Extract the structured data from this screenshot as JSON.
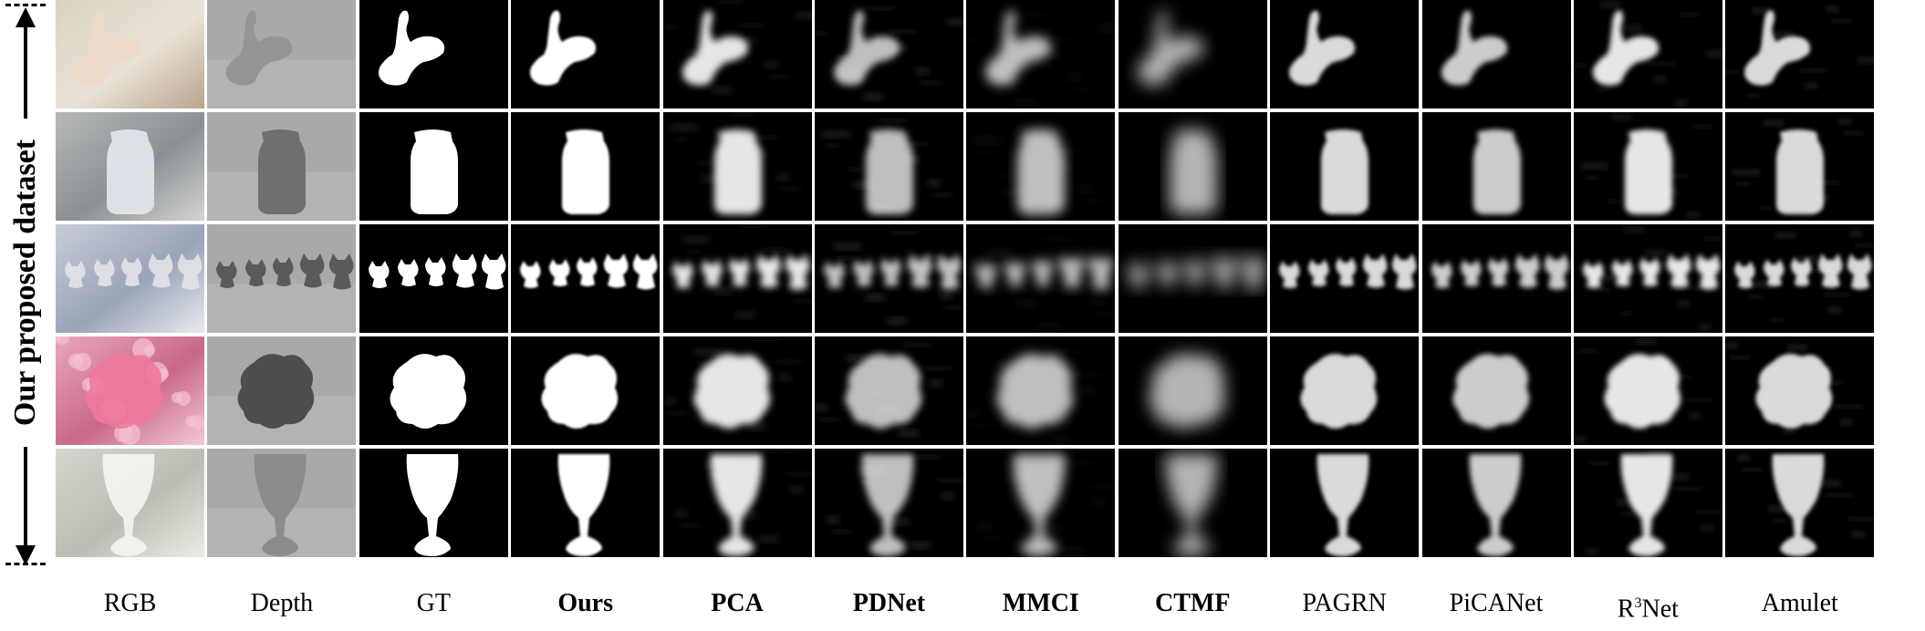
{
  "side_label": "Our proposed dataset",
  "columns": [
    {
      "label": "RGB",
      "bold": false
    },
    {
      "label": "Depth",
      "bold": false
    },
    {
      "label": "GT",
      "bold": false
    },
    {
      "label": "Ours",
      "bold": true
    },
    {
      "label": "PCA",
      "bold": true
    },
    {
      "label": "PDNet",
      "bold": true
    },
    {
      "label": "MMCI",
      "bold": true
    },
    {
      "label": "CTMF",
      "bold": true
    },
    {
      "label": "PAGRN",
      "bold": false
    },
    {
      "label": "PiCANet",
      "bold": false
    },
    {
      "label": "R3Net",
      "bold": false,
      "display": {
        "prefix": "R",
        "sup": "3",
        "suffix": "Net"
      }
    },
    {
      "label": "Amulet",
      "bold": false
    }
  ],
  "rows": [
    "butterfly",
    "jar",
    "cat-figurines",
    "flower",
    "wine-glass"
  ]
}
